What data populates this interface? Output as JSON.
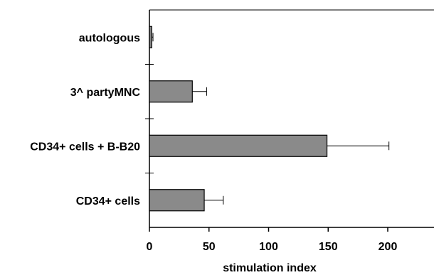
{
  "chart_data": {
    "type": "bar",
    "orientation": "horizontal",
    "categories": [
      "autologous",
      "3^ partyMNC",
      "CD34+ cells + B-B20",
      "CD34+ cells"
    ],
    "values": [
      2,
      36,
      149,
      46
    ],
    "errors": [
      1,
      12,
      52,
      16
    ],
    "title": "",
    "xlabel": "stimulation index",
    "ylabel": "",
    "xlim": [
      0,
      235
    ],
    "xticks": [
      "0",
      "50",
      "100",
      "150",
      "200"
    ],
    "tick_values": [
      0,
      50,
      100,
      150,
      200
    ],
    "grid": false,
    "legend": "none",
    "bar_color": "#8a8a8a"
  }
}
